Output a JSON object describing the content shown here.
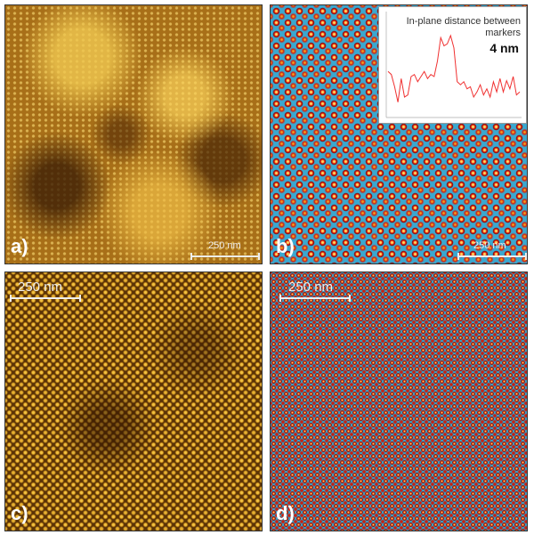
{
  "panels": [
    {
      "label": "a)",
      "scale": "250 nm"
    },
    {
      "label": "b)",
      "scale": "250 nm"
    },
    {
      "label": "c)",
      "scale": "250 nm"
    },
    {
      "label": "d)",
      "scale": "250 nm"
    }
  ],
  "inset": {
    "title": "In-plane distance between markers",
    "value": "4 nm",
    "line_color": "#f03030",
    "profile": [
      0.45,
      0.42,
      0.3,
      0.15,
      0.38,
      0.2,
      0.22,
      0.4,
      0.42,
      0.35,
      0.4,
      0.45,
      0.38,
      0.42,
      0.4,
      0.55,
      0.78,
      0.7,
      0.72,
      0.8,
      0.68,
      0.35,
      0.32,
      0.35,
      0.28,
      0.3,
      0.2,
      0.25,
      0.32,
      0.22,
      0.28,
      0.2,
      0.35,
      0.25,
      0.38,
      0.25,
      0.36,
      0.28,
      0.4,
      0.22,
      0.25
    ]
  }
}
